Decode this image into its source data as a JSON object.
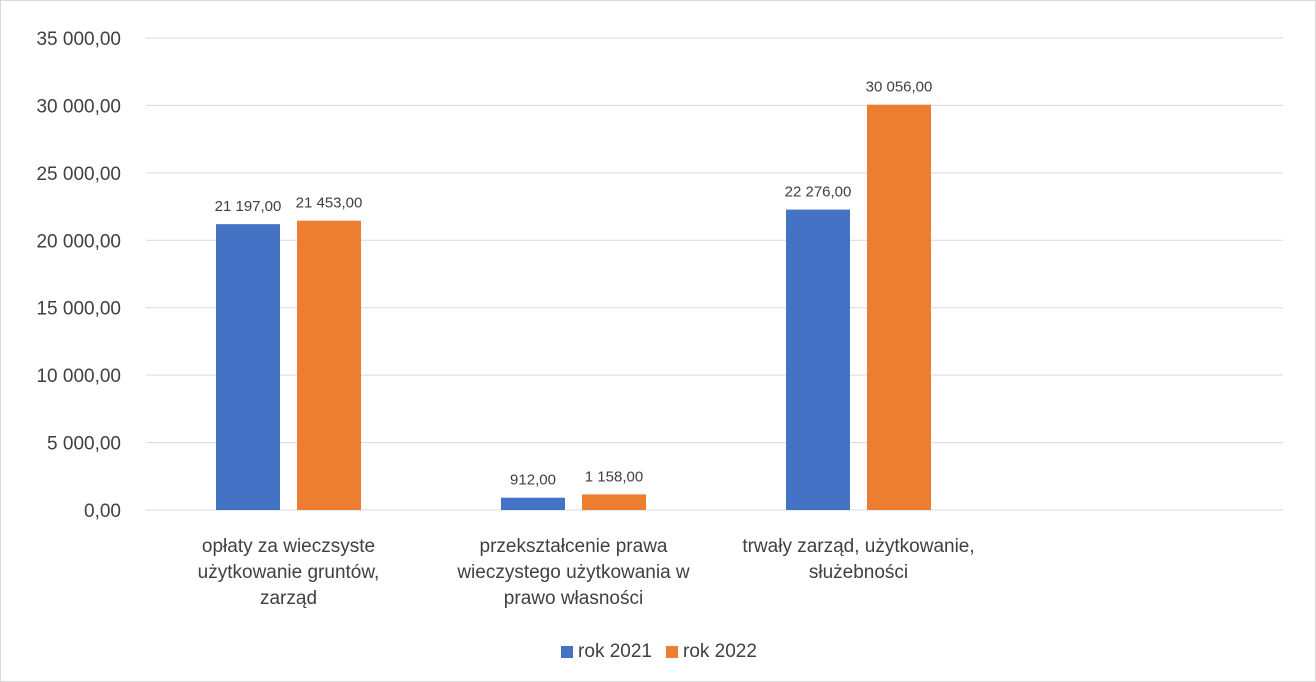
{
  "chart_data": {
    "type": "bar",
    "categories": [
      [
        "opłaty za wieczsyste",
        "użytkowanie gruntów,",
        "zarząd"
      ],
      [
        "przekształcenie prawa",
        "wieczystego użytkowania w",
        "prawo własności"
      ],
      [
        "trwały zarząd, użytkowanie,",
        "służebności"
      ]
    ],
    "series": [
      {
        "name": "rok 2021",
        "color": "#4472C4",
        "values": [
          21197,
          912,
          22276
        ],
        "labels": [
          "21 197,00",
          "912,00",
          "22 276,00"
        ]
      },
      {
        "name": "rok 2022",
        "color": "#ED7D31",
        "values": [
          21453,
          1158,
          30056
        ],
        "labels": [
          "21 453,00",
          "1 158,00",
          "30 056,00"
        ]
      }
    ],
    "ylim": [
      0,
      35000
    ],
    "y_ticks": [
      0,
      5000,
      10000,
      15000,
      20000,
      25000,
      30000,
      35000
    ],
    "y_tick_labels": [
      "0,00",
      "5 000,00",
      "10 000,00",
      "15 000,00",
      "20 000,00",
      "25 000,00",
      "30 000,00",
      "35 000,00"
    ],
    "title": "",
    "xlabel": "",
    "ylabel": "",
    "grid": true,
    "legend_position": "bottom"
  }
}
